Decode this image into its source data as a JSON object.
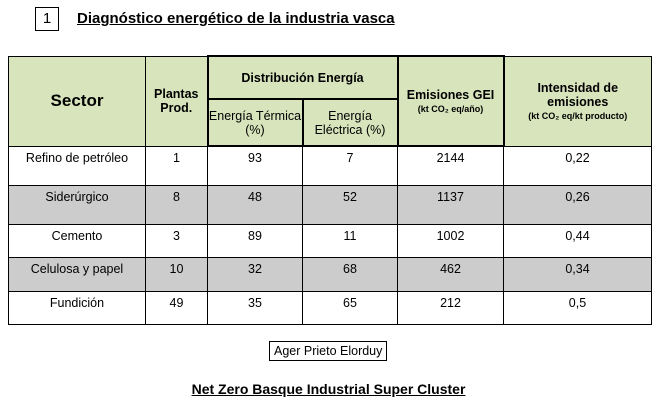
{
  "slide_number": "1",
  "title": "Diagnóstico energético de la industria vasca",
  "table": {
    "headers": {
      "sector": "Sector",
      "plantas": "Plantas Prod.",
      "distribucion": "Distribución Energía",
      "termica": "Energía Térmica (%)",
      "electrica": "Energía Eléctrica (%)",
      "emisiones": "Emisiones GEI",
      "emisiones_unit": "(kt CO₂ eq/año)",
      "intensidad": "Intensidad de emisiones",
      "intensidad_unit": "(kt CO₂ eq/kt producto)"
    },
    "rows": [
      [
        "Refino de petróleo",
        "1",
        "93",
        "7",
        "2144",
        "0,22"
      ],
      [
        "Siderúrgico",
        "8",
        "48",
        "52",
        "1137",
        "0,26"
      ],
      [
        "Cemento",
        "3",
        "89",
        "11",
        "1002",
        "0,44"
      ],
      [
        "Celulosa y papel",
        "10",
        "32",
        "68",
        "462",
        "0,34"
      ],
      [
        "Fundición",
        "49",
        "35",
        "65",
        "212",
        "0,5"
      ]
    ]
  },
  "author": "Ager Prieto Elorduy",
  "footer": "Net Zero Basque Industrial Super Cluster",
  "colors": {
    "header_bg": "#d8e4bc",
    "alt_row_bg": "#cccccc"
  }
}
